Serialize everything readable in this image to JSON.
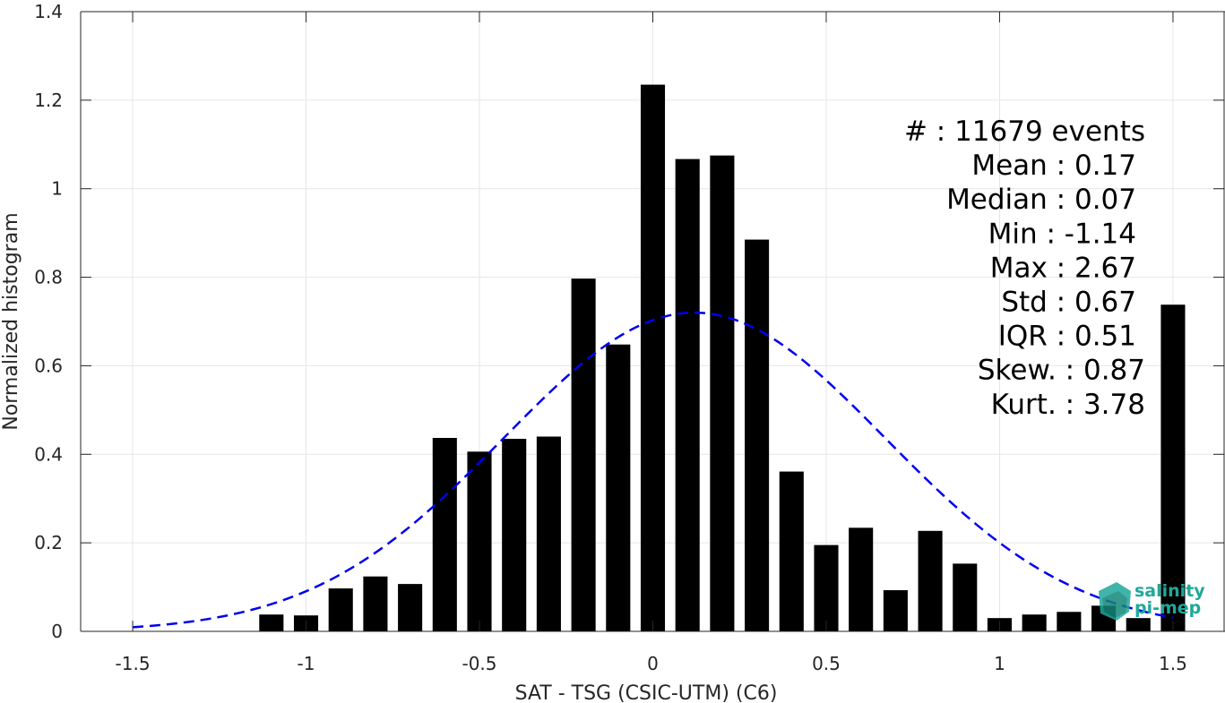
{
  "chart_data": {
    "type": "bar",
    "xlabel": "SAT - TSG (CSIC-UTM) (C6)",
    "ylabel": "Normalized histogram",
    "xlim": [
      -1.65,
      1.65
    ],
    "ylim": [
      0,
      1.4
    ],
    "xticks": [
      "-1.5",
      "-1",
      "-0.5",
      "0",
      "0.5",
      "1",
      "1.5"
    ],
    "xtick_values": [
      -1.5,
      -1,
      -0.5,
      0,
      0.5,
      1,
      1.5
    ],
    "yticks": [
      "0",
      "0.2",
      "0.4",
      "0.6",
      "0.8",
      "1",
      "1.2",
      "1.4"
    ],
    "ytick_values": [
      0,
      0.2,
      0.4,
      0.6,
      0.8,
      1.0,
      1.2,
      1.4
    ],
    "grid": true,
    "bar_color": "#000000",
    "bar_width": 0.07,
    "bars": {
      "x": [
        -1.1,
        -1.0,
        -0.9,
        -0.8,
        -0.7,
        -0.6,
        -0.5,
        -0.4,
        -0.3,
        -0.2,
        -0.1,
        0.0,
        0.1,
        0.2,
        0.3,
        0.4,
        0.5,
        0.6,
        0.7,
        0.8,
        0.9,
        1.0,
        1.1,
        1.2,
        1.3,
        1.4,
        1.5
      ],
      "values": [
        0.038,
        0.036,
        0.097,
        0.124,
        0.107,
        0.437,
        0.406,
        0.435,
        0.44,
        0.797,
        0.648,
        1.235,
        1.067,
        1.075,
        0.885,
        0.361,
        0.195,
        0.234,
        0.093,
        0.227,
        0.153,
        0.03,
        0.038,
        0.044,
        0.058,
        0.03,
        0.738
      ]
    },
    "fit_curve": {
      "type": "normal",
      "mean": 0.12,
      "std": 0.55,
      "peak": 0.72,
      "x_range": [
        -1.5,
        1.5
      ],
      "color": "#0000ee",
      "style": "dashed"
    },
    "stats_lines": [
      "#  : 11679 events",
      "Mean : 0.17",
      "Median : 0.07",
      "Min : -1.14",
      "Max : 2.67",
      "Std : 0.67",
      "IQR : 0.51",
      "Skew. : 0.87",
      "Kurt. : 3.78"
    ],
    "stats_placement": "top-right"
  },
  "logo": {
    "line1": "salinity",
    "line2": "pi-mep",
    "color": "#1fa89a"
  }
}
